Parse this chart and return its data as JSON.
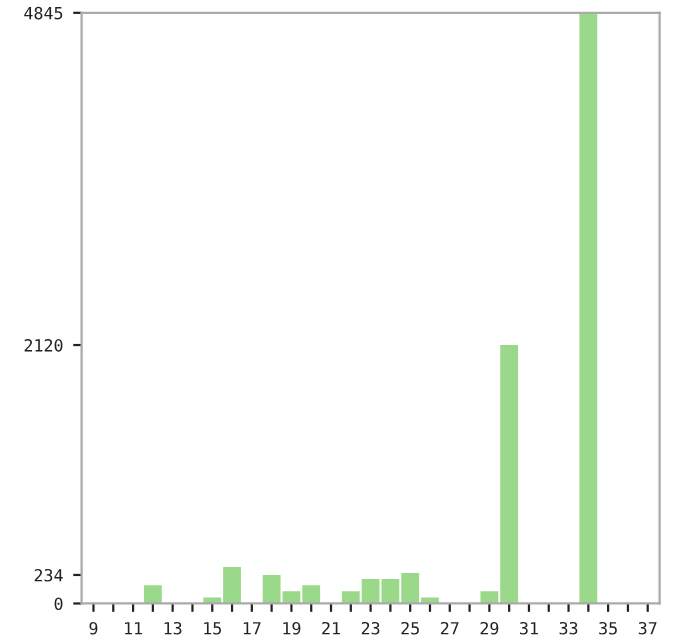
{
  "chart_data": {
    "type": "bar",
    "categories": [
      "9",
      null,
      "11",
      null,
      "13",
      null,
      "15",
      null,
      "17",
      null,
      "19",
      null,
      "21",
      null,
      "23",
      null,
      "25",
      null,
      "27",
      null,
      "29",
      null,
      "31",
      null,
      "33",
      null,
      "35",
      null,
      "37"
    ],
    "values": [
      0,
      0,
      0,
      150,
      0,
      0,
      50,
      300,
      0,
      234,
      100,
      150,
      0,
      100,
      200,
      200,
      250,
      50,
      0,
      0,
      100,
      2120,
      0,
      0,
      0,
      4845,
      0,
      0,
      0
    ],
    "color": "#9ad98a",
    "ylim": [
      0,
      4845
    ],
    "yticks": [
      0,
      234,
      2120,
      4845
    ],
    "grid": false
  }
}
